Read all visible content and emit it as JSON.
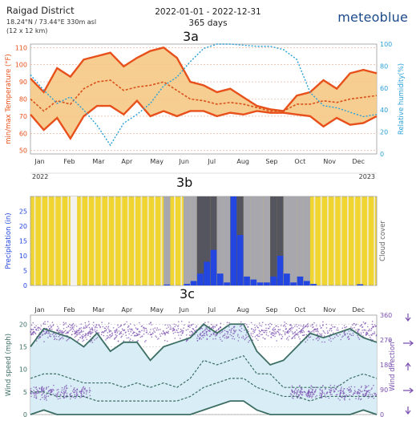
{
  "header": {
    "location": "Raigad District",
    "coords": "18.24°N / 73.44°E  330m asl",
    "grid": "(12 x 12 km)",
    "date_range": "2022-01-01 - 2022-12-31",
    "days": "365 days",
    "brand": "meteoblue"
  },
  "labels": {
    "a": "3a",
    "b": "3b",
    "c": "3c"
  },
  "year_left": "2022",
  "year_right": "2023",
  "months": [
    "Jan",
    "Feb",
    "Mar",
    "Apr",
    "May",
    "Jun",
    "Jul",
    "Aug",
    "Sep",
    "Oct",
    "Nov",
    "Dec"
  ],
  "colors": {
    "tmax": "#e8501b",
    "tmean": "#d9531c",
    "band_fill": "#f6c67e",
    "humidity": "#2aa0d8",
    "precip": "#2345e0",
    "cloud_high": "#f0d430",
    "cloud_mid": "#a7a7ad",
    "cloud_low": "#55555f",
    "wind_line": "#3c6e63",
    "wind_fill": "#d4ebf5",
    "wind_dir": "#7a4fb0"
  },
  "chart_data": [
    {
      "id": "3a",
      "type": "line",
      "ylabel": "min/max Temperature (°F)",
      "ylabel_right": "Relative humidity(%)",
      "ylim": [
        48,
        112
      ],
      "yticks": [
        50,
        60,
        70,
        80,
        90,
        100,
        110
      ],
      "ylim_right": [
        0,
        100
      ],
      "yticks_right": [
        0,
        20,
        40,
        60,
        80,
        100
      ],
      "grid": true,
      "x_weeks": [
        0,
        2,
        4,
        6,
        8,
        10,
        12,
        14,
        16,
        18,
        20,
        22,
        24,
        26,
        28,
        30,
        32,
        34,
        36,
        38,
        40,
        42,
        44,
        46,
        48,
        50,
        52
      ],
      "series": [
        {
          "values": [
            92,
            84,
            98,
            93,
            103,
            105,
            107,
            99,
            104,
            108,
            110,
            104,
            90,
            88,
            84,
            86,
            81,
            76,
            74,
            73,
            82,
            84,
            91,
            86,
            95,
            97,
            95
          ]
        },
        {
          "values": [
            71,
            62,
            69,
            57,
            70,
            76,
            76,
            71,
            79,
            70,
            73,
            70,
            73,
            73,
            70,
            72,
            71,
            73,
            72,
            72,
            71,
            70,
            64,
            69,
            65,
            66,
            70
          ]
        },
        {
          "values": [
            80,
            73,
            79,
            77,
            86,
            90,
            91,
            85,
            87,
            88,
            90,
            85,
            80,
            79,
            77,
            78,
            77,
            75,
            73,
            73,
            77,
            77,
            79,
            78,
            80,
            81,
            82
          ]
        },
        {
          "values": [
            72,
            58,
            46,
            52,
            40,
            26,
            8,
            28,
            36,
            46,
            62,
            70,
            84,
            96,
            100,
            100,
            99,
            98,
            98,
            95,
            86,
            56,
            44,
            42,
            38,
            34,
            36
          ]
        }
      ]
    },
    {
      "id": "3b",
      "type": "bar",
      "ylabel": "Precipitation (in)",
      "ylabel_right": "Cloud cover",
      "ylim": [
        0,
        30
      ],
      "yticks": [
        0,
        5,
        10,
        15,
        20,
        25
      ],
      "x_weeks": [
        0,
        1,
        2,
        3,
        4,
        5,
        6,
        7,
        8,
        9,
        10,
        11,
        12,
        13,
        14,
        15,
        16,
        17,
        18,
        19,
        20,
        21,
        22,
        23,
        24,
        25,
        26,
        27,
        28,
        29,
        30,
        31,
        32,
        33,
        34,
        35,
        36,
        37,
        38,
        39,
        40,
        41,
        42,
        43,
        44,
        45,
        46,
        47,
        48,
        49,
        50,
        51
      ],
      "values": [
        0,
        0,
        0,
        0,
        0,
        0,
        0,
        0,
        0,
        0,
        0,
        0,
        0,
        0,
        0,
        0,
        0,
        0,
        0,
        0,
        0.3,
        0,
        0,
        0.5,
        1.5,
        4,
        8,
        12,
        4,
        1,
        30,
        17,
        3,
        2,
        1,
        1,
        3,
        10,
        4,
        1,
        3,
        1.5,
        0.5,
        0,
        0,
        0,
        0,
        0,
        0,
        0.4,
        0,
        0
      ],
      "cloud_cover": [
        1,
        1,
        1,
        1,
        1,
        1,
        0,
        1,
        1,
        1,
        1,
        1,
        1,
        1,
        1,
        1,
        1,
        1,
        1,
        1,
        2,
        1,
        1,
        2,
        2,
        3,
        3,
        3,
        2,
        2,
        3,
        3,
        2,
        2,
        2,
        2,
        3,
        3,
        2,
        2,
        2,
        2,
        1,
        1,
        1,
        1,
        1,
        1,
        1,
        1,
        1,
        1
      ]
    },
    {
      "id": "3c",
      "type": "line",
      "ylabel": "Wind speed (mph)",
      "ylabel_right": "Wind direction°",
      "ylim": [
        0,
        22
      ],
      "yticks": [
        0,
        5,
        10,
        15,
        20
      ],
      "ylim_right": [
        0,
        360
      ],
      "yticks_right": [
        0,
        90,
        180,
        270,
        360
      ],
      "grid": true,
      "x_weeks": [
        0,
        2,
        4,
        6,
        8,
        10,
        12,
        14,
        16,
        18,
        20,
        22,
        24,
        26,
        28,
        30,
        32,
        34,
        36,
        38,
        40,
        42,
        44,
        46,
        48,
        50,
        52
      ],
      "series": [
        {
          "values": [
            15,
            19,
            18,
            17,
            15,
            18,
            14,
            16,
            16,
            12,
            15,
            16,
            17,
            20,
            18,
            20,
            20,
            14,
            11,
            12,
            15,
            18,
            17,
            18,
            19,
            17,
            16
          ]
        },
        {
          "values": [
            8,
            9,
            9,
            8,
            7,
            7,
            7,
            6,
            7,
            6,
            7,
            6,
            8,
            12,
            11,
            12,
            13,
            9,
            9,
            6,
            6,
            6,
            6,
            6,
            8,
            9,
            8
          ]
        },
        {
          "values": [
            5,
            5,
            4,
            4,
            4,
            3,
            3,
            3,
            3,
            3,
            3,
            3,
            4,
            6,
            7,
            8,
            8,
            6,
            5,
            4,
            4,
            3,
            4,
            4,
            4,
            4,
            4
          ]
        },
        {
          "values": [
            0,
            1,
            0,
            0,
            0,
            0,
            0,
            0,
            0,
            0,
            0,
            0,
            0,
            1,
            2,
            3,
            3,
            1,
            0,
            0,
            0,
            0,
            0,
            0,
            0,
            1,
            0
          ]
        }
      ],
      "direction_bands": [
        {
          "start": 0,
          "end": 52,
          "center": 300,
          "spread": 40
        },
        {
          "start": 0,
          "end": 9,
          "center": 80,
          "spread": 30
        },
        {
          "start": 39,
          "end": 52,
          "center": 80,
          "spread": 30
        }
      ]
    }
  ]
}
